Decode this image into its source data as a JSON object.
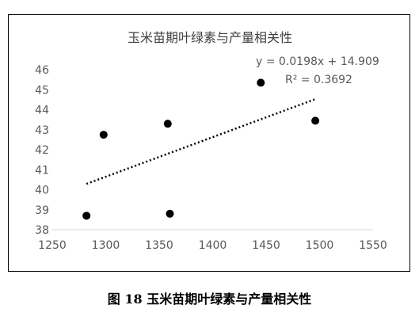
{
  "chart_data": {
    "type": "scatter",
    "title": "玉米苗期叶绿素与产量相关性",
    "xlabel": "",
    "ylabel": "",
    "xlim": [
      1250,
      1550
    ],
    "ylim": [
      38,
      46
    ],
    "x_ticks": [
      "1250",
      "1300",
      "1350",
      "1400",
      "1450",
      "1500",
      "1550"
    ],
    "y_ticks": [
      "38",
      "39",
      "40",
      "41",
      "42",
      "43",
      "44",
      "45",
      "46"
    ],
    "points": [
      {
        "x": 1282,
        "y": 38.7
      },
      {
        "x": 1298,
        "y": 42.75
      },
      {
        "x": 1358,
        "y": 43.3
      },
      {
        "x": 1360,
        "y": 38.8
      },
      {
        "x": 1445,
        "y": 45.35
      },
      {
        "x": 1496,
        "y": 43.45
      }
    ],
    "trendline": {
      "type": "linear",
      "slope": 0.0198,
      "intercept": 14.909,
      "x_range": [
        1282,
        1496
      ],
      "equation_label": "y = 0.0198x + 14.909",
      "r2_label": "R² = 0.3692"
    },
    "grid": false,
    "legend": "none",
    "colors": {
      "marker": "#000000",
      "axis_text": "#595959",
      "axis_line": "#d9d9d9",
      "trend": "#000000",
      "title": "#404040"
    }
  },
  "caption": "图 18 玉米苗期叶绿素与产量相关性"
}
